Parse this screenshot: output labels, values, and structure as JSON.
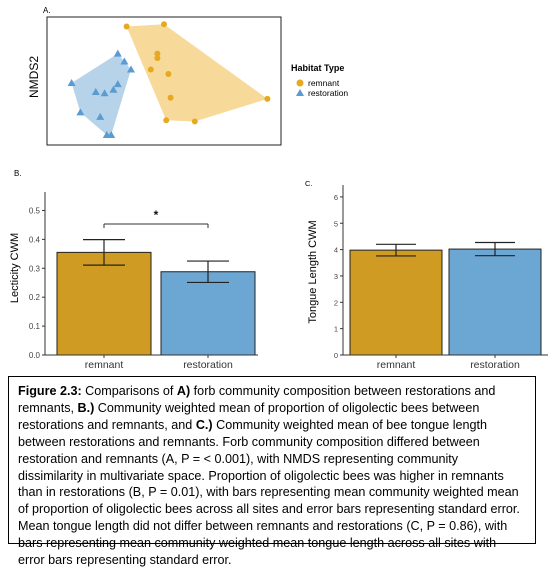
{
  "colors": {
    "remnant": "#E6A91F",
    "restoration": "#5B9BD0",
    "remnant_bar": "#D09B22",
    "restoration_bar": "#6CA6D3",
    "remnant_hull": "#F6D488",
    "restoration_hull": "#A9CBE6"
  },
  "chart_data": [
    {
      "panel": "A.",
      "type": "scatter",
      "ylabel": "NMDS2",
      "legend_title": "Habitat Type",
      "legend_position": "right",
      "grid": false,
      "xlim": [
        0,
        100
      ],
      "ylim": [
        0,
        100
      ],
      "series": [
        {
          "name": "remnant",
          "marker": "circle",
          "points": [
            [
              33,
              96
            ],
            [
              50,
              98
            ],
            [
              47,
              72
            ],
            [
              47,
              68
            ],
            [
              44,
              58
            ],
            [
              52,
              54
            ],
            [
              53,
              33
            ],
            [
              97,
              32
            ],
            [
              51,
              13
            ],
            [
              64,
              12
            ]
          ]
        },
        {
          "name": "restoration",
          "marker": "triangle",
          "points": [
            [
              29,
              72
            ],
            [
              32,
              65
            ],
            [
              35,
              58
            ],
            [
              8,
              46
            ],
            [
              29,
              45
            ],
            [
              27,
              40
            ],
            [
              19,
              38
            ],
            [
              23,
              37
            ],
            [
              12,
              20
            ],
            [
              21,
              16
            ],
            [
              26,
              0
            ],
            [
              24,
              0
            ]
          ]
        }
      ]
    },
    {
      "panel": "B.",
      "type": "bar",
      "ylabel": "Lecticity CWM",
      "categories": [
        "remnant",
        "restoration"
      ],
      "values": [
        0.355,
        0.288
      ],
      "error": [
        0.044,
        0.037
      ],
      "ylim": [
        0,
        0.55
      ],
      "yticks": [
        "0.0",
        "0.1",
        "0.2",
        "0.3",
        "0.4",
        "0.5"
      ],
      "significance": "*",
      "grid": false
    },
    {
      "panel": "C.",
      "type": "bar",
      "ylabel": "Tongue Length CWM",
      "categories": [
        "remnant",
        "restoration"
      ],
      "values": [
        3.98,
        4.02
      ],
      "error": [
        0.22,
        0.25
      ],
      "ylim": [
        0,
        6.3
      ],
      "yticks": [
        "0",
        "1",
        "2",
        "3",
        "4",
        "5",
        "6"
      ],
      "grid": false
    }
  ],
  "caption": {
    "label": "Figure 2.3:",
    "t1": " Comparisons of ",
    "a": "A)",
    "t2": " forb community composition between restorations and remnants, ",
    "b": "B.)",
    "t3": " Community weighted mean of proportion of oligolectic bees between restorations and remnants, and ",
    "c": "C.)",
    "t4": " Community weighted mean of bee tongue length between restorations and remnants. Forb community composition differed between restoration and remnants (A, P = < 0.001), with NMDS representing community dissimilarity in multivariate space. Proportion of oligolectic bees was higher in remnants than in restorations (B, P = 0.01), with bars representing mean community weighted mean of proportion of oligolectic bees across all sites and error bars representing standard error. Mean tongue length did not differ between remnants and restorations (C, P = 0.86), with bars representing mean community weighted mean tongue length across all sites with error bars representing standard error."
  }
}
